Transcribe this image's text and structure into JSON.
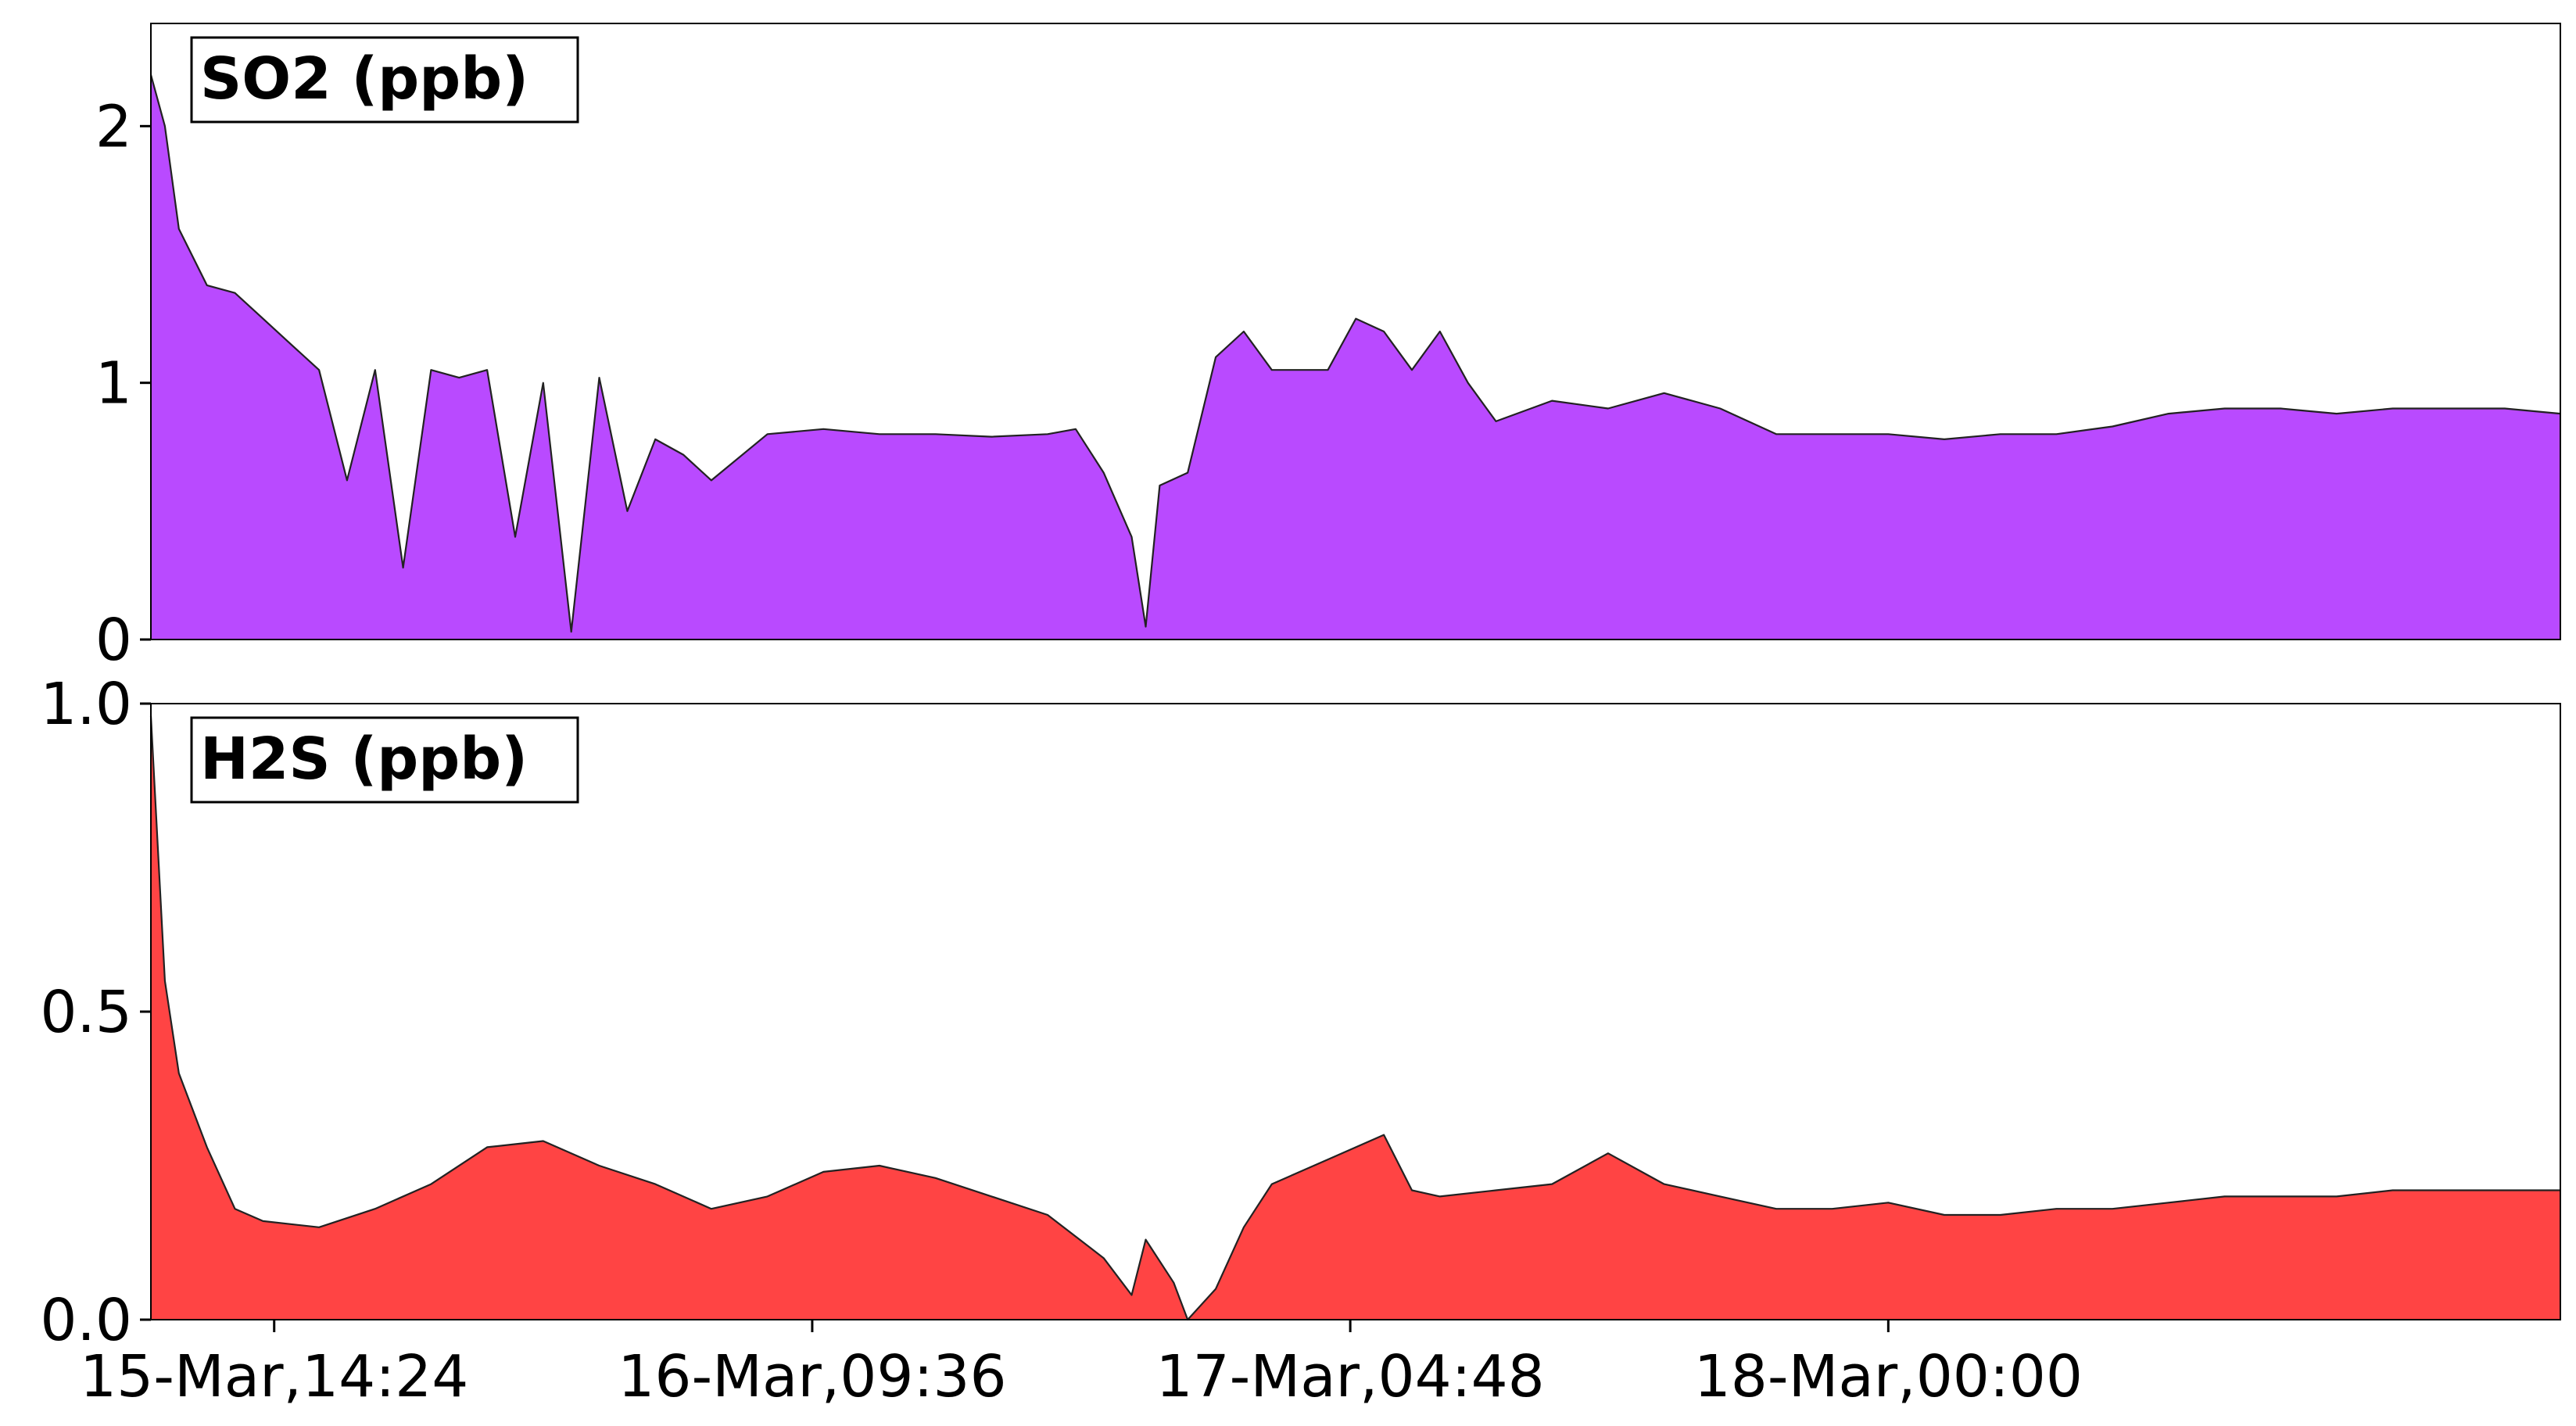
{
  "chart_data": [
    {
      "type": "area",
      "label": "SO2 (ppb)",
      "color": "#b94aff",
      "ylim": [
        0,
        2.4
      ],
      "yticks": [
        "0",
        "1",
        "2"
      ],
      "ytick_values": [
        0,
        1,
        2
      ],
      "xlim": [
        "2021-03-15T10:00",
        "2021-03-18T23:59"
      ],
      "x": [
        "2021-03-15T10:00",
        "2021-03-15T10:30",
        "2021-03-15T11:00",
        "2021-03-15T12:00",
        "2021-03-15T13:00",
        "2021-03-15T14:00",
        "2021-03-15T15:00",
        "2021-03-15T16:00",
        "2021-03-15T17:00",
        "2021-03-15T18:00",
        "2021-03-15T19:00",
        "2021-03-15T20:00",
        "2021-03-15T21:00",
        "2021-03-15T22:00",
        "2021-03-15T23:00",
        "2021-03-16T00:00",
        "2021-03-16T01:00",
        "2021-03-16T02:00",
        "2021-03-16T03:00",
        "2021-03-16T04:00",
        "2021-03-16T05:00",
        "2021-03-16T06:00",
        "2021-03-16T08:00",
        "2021-03-16T10:00",
        "2021-03-16T12:00",
        "2021-03-16T14:00",
        "2021-03-16T16:00",
        "2021-03-16T18:00",
        "2021-03-16T19:00",
        "2021-03-16T20:00",
        "2021-03-16T21:00",
        "2021-03-16T21:30",
        "2021-03-16T22:00",
        "2021-03-16T23:00",
        "2021-03-17T00:00",
        "2021-03-17T01:00",
        "2021-03-17T02:00",
        "2021-03-17T04:00",
        "2021-03-17T05:00",
        "2021-03-17T06:00",
        "2021-03-17T07:00",
        "2021-03-17T08:00",
        "2021-03-17T09:00",
        "2021-03-17T10:00",
        "2021-03-17T12:00",
        "2021-03-17T14:00",
        "2021-03-17T16:00",
        "2021-03-17T18:00",
        "2021-03-17T20:00",
        "2021-03-17T22:00",
        "2021-03-18T00:00",
        "2021-03-18T02:00",
        "2021-03-18T04:00",
        "2021-03-18T06:00",
        "2021-03-18T08:00",
        "2021-03-18T10:00",
        "2021-03-18T12:00",
        "2021-03-18T14:00",
        "2021-03-18T16:00",
        "2021-03-18T18:00",
        "2021-03-18T20:00",
        "2021-03-18T22:00",
        "2021-03-18T23:59"
      ],
      "y": [
        2.2,
        2.0,
        1.6,
        1.38,
        1.35,
        1.25,
        1.15,
        1.05,
        0.62,
        1.05,
        0.28,
        1.05,
        1.02,
        1.05,
        0.4,
        1.0,
        0.03,
        1.02,
        0.5,
        0.78,
        0.72,
        0.62,
        0.8,
        0.82,
        0.8,
        0.8,
        0.79,
        0.8,
        0.82,
        0.65,
        0.4,
        0.05,
        0.6,
        0.65,
        1.1,
        1.2,
        1.05,
        1.05,
        1.25,
        1.2,
        1.05,
        1.2,
        1.0,
        0.85,
        0.93,
        0.9,
        0.96,
        0.9,
        0.8,
        0.8,
        0.8,
        0.78,
        0.8,
        0.8,
        0.83,
        0.88,
        0.9,
        0.9,
        0.88,
        0.9,
        0.9,
        0.9,
        0.88
      ]
    },
    {
      "type": "area",
      "label": "H2S (ppb)",
      "color": "#ff4444",
      "ylim": [
        0,
        1.0
      ],
      "yticks": [
        "0.0",
        "0.5",
        "1.0"
      ],
      "ytick_values": [
        0,
        0.5,
        1.0
      ],
      "xlim": [
        "2021-03-15T10:00",
        "2021-03-18T23:59"
      ],
      "xticks": [
        "15-Mar,14:24",
        "16-Mar,09:36",
        "17-Mar,04:48",
        "18-Mar,00:00"
      ],
      "xtick_values": [
        "2021-03-15T14:24",
        "2021-03-16T09:36",
        "2021-03-17T04:48",
        "2021-03-18T00:00"
      ],
      "x": [
        "2021-03-15T10:00",
        "2021-03-15T10:30",
        "2021-03-15T11:00",
        "2021-03-15T12:00",
        "2021-03-15T13:00",
        "2021-03-15T14:00",
        "2021-03-15T16:00",
        "2021-03-15T18:00",
        "2021-03-15T20:00",
        "2021-03-15T22:00",
        "2021-03-16T00:00",
        "2021-03-16T02:00",
        "2021-03-16T04:00",
        "2021-03-16T06:00",
        "2021-03-16T08:00",
        "2021-03-16T10:00",
        "2021-03-16T12:00",
        "2021-03-16T14:00",
        "2021-03-16T16:00",
        "2021-03-16T18:00",
        "2021-03-16T20:00",
        "2021-03-16T21:00",
        "2021-03-16T21:30",
        "2021-03-16T22:30",
        "2021-03-16T23:00",
        "2021-03-17T00:00",
        "2021-03-17T00:30",
        "2021-03-17T01:00",
        "2021-03-17T02:00",
        "2021-03-17T04:00",
        "2021-03-17T06:00",
        "2021-03-17T07:00",
        "2021-03-17T08:00",
        "2021-03-17T10:00",
        "2021-03-17T12:00",
        "2021-03-17T14:00",
        "2021-03-17T16:00",
        "2021-03-17T18:00",
        "2021-03-17T20:00",
        "2021-03-17T22:00",
        "2021-03-18T00:00",
        "2021-03-18T02:00",
        "2021-03-18T04:00",
        "2021-03-18T06:00",
        "2021-03-18T08:00",
        "2021-03-18T10:00",
        "2021-03-18T12:00",
        "2021-03-18T14:00",
        "2021-03-18T16:00",
        "2021-03-18T18:00",
        "2021-03-18T20:00",
        "2021-03-18T22:00",
        "2021-03-18T23:59"
      ],
      "y": [
        0.98,
        0.55,
        0.4,
        0.28,
        0.18,
        0.16,
        0.15,
        0.18,
        0.22,
        0.28,
        0.29,
        0.25,
        0.22,
        0.18,
        0.2,
        0.24,
        0.25,
        0.23,
        0.2,
        0.17,
        0.1,
        0.04,
        0.13,
        0.06,
        0.0,
        0.05,
        0.1,
        0.15,
        0.22,
        0.26,
        0.3,
        0.21,
        0.2,
        0.21,
        0.22,
        0.27,
        0.22,
        0.2,
        0.18,
        0.18,
        0.19,
        0.17,
        0.17,
        0.18,
        0.18,
        0.19,
        0.2,
        0.2,
        0.2,
        0.21,
        0.21,
        0.21,
        0.21
      ]
    }
  ]
}
